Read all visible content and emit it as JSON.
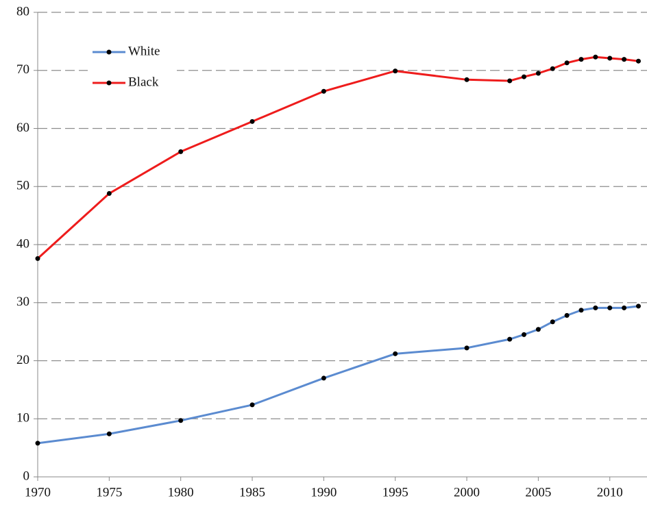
{
  "chart_data": {
    "type": "line",
    "x": [
      1970,
      1975,
      1980,
      1985,
      1990,
      1995,
      2000,
      2003,
      2004,
      2005,
      2006,
      2007,
      2008,
      2009,
      2010,
      2011,
      2012
    ],
    "series": [
      {
        "name": "White",
        "color": "#5b8bd0",
        "values": [
          5.8,
          7.4,
          9.7,
          12.4,
          17.0,
          21.2,
          22.2,
          23.7,
          24.5,
          25.4,
          26.7,
          27.8,
          28.7,
          29.1,
          29.1,
          29.1,
          29.4
        ]
      },
      {
        "name": "Black",
        "color": "#ee1c1c",
        "values": [
          37.6,
          48.8,
          56.0,
          61.2,
          66.4,
          69.9,
          68.4,
          68.2,
          68.9,
          69.5,
          70.3,
          71.3,
          71.9,
          72.3,
          72.1,
          71.9,
          71.6
        ]
      }
    ],
    "xlim": [
      1970,
      2012.6
    ],
    "xticks": [
      1970,
      1975,
      1980,
      1985,
      1990,
      1995,
      2000,
      2005,
      2010
    ],
    "ylim": [
      0,
      80
    ],
    "yticks": [
      0,
      10,
      20,
      30,
      40,
      50,
      60,
      70,
      80
    ],
    "grid": true,
    "legend": "upper left"
  }
}
